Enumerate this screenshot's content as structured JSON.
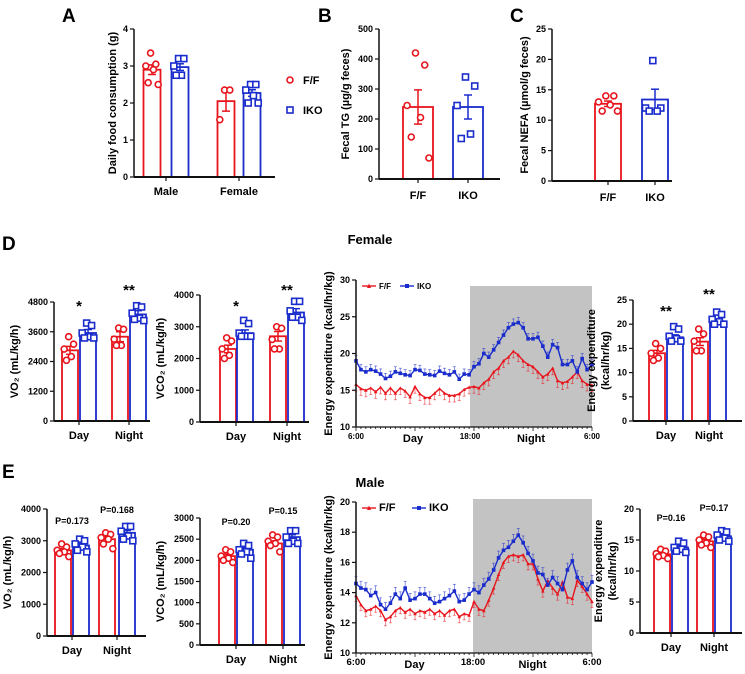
{
  "colors": {
    "ff": "#e8141c",
    "iko": "#1a2ccc",
    "night_shade": "#c3c3c3",
    "axis": "#111111"
  },
  "chart_data": [
    {
      "id": "A",
      "letter": "A",
      "type": "bar",
      "ylabel": "Daily food consumption (g)",
      "ylim": [
        0,
        4
      ],
      "yticks": [
        0,
        1,
        2,
        3,
        4
      ],
      "categories": [
        "Male",
        "Female"
      ],
      "legend": {
        "placement": "right",
        "entries": [
          {
            "name": "F/F",
            "marker": "circle"
          },
          {
            "name": "IKO",
            "marker": "square"
          }
        ]
      },
      "bars": [
        {
          "category": "Male",
          "series": "F/F",
          "mean": 2.9,
          "sem": 0.13,
          "points": [
            3.35,
            3.05,
            3.0,
            2.9,
            2.55,
            2.5
          ]
        },
        {
          "category": "Male",
          "series": "IKO",
          "mean": 2.97,
          "sem": 0.09,
          "points": [
            3.2,
            3.2,
            3.0,
            2.75,
            2.75
          ]
        },
        {
          "category": "Female",
          "series": "F/F",
          "mean": 2.05,
          "sem": 0.27,
          "points": [
            2.35,
            2.35,
            1.55
          ]
        },
        {
          "category": "Female",
          "series": "IKO",
          "mean": 2.27,
          "sem": 0.09,
          "points": [
            2.5,
            2.5,
            2.35,
            2.2,
            2.0,
            2.0
          ]
        }
      ],
      "annotations": []
    },
    {
      "id": "B",
      "letter": "B",
      "type": "bar",
      "ylabel": "Fecal TG (µg/g feces)",
      "ylim": [
        0,
        500
      ],
      "yticks": [
        0,
        100,
        200,
        300,
        400,
        500
      ],
      "categories": [
        "F/F",
        "IKO"
      ],
      "bars": [
        {
          "category": "F/F",
          "series": "F/F",
          "mean": 240,
          "sem": 57,
          "points": [
            420,
            380,
            245,
            205,
            140,
            70
          ]
        },
        {
          "category": "IKO",
          "series": "IKO",
          "mean": 240,
          "sem": 40,
          "points": [
            340,
            310,
            245,
            150,
            135
          ]
        }
      ],
      "annotations": []
    },
    {
      "id": "C",
      "letter": "C",
      "type": "bar",
      "ylabel": "Fecal NEFA (µmol/g feces)",
      "ylim": [
        0,
        25
      ],
      "yticks": [
        0,
        5,
        10,
        15,
        20,
        25
      ],
      "categories": [
        "F/F",
        "IKO"
      ],
      "bars": [
        {
          "category": "F/F",
          "series": "F/F",
          "mean": 12.7,
          "sem": 0.45,
          "points": [
            14,
            14,
            13,
            12.5,
            11.5,
            11.5
          ]
        },
        {
          "category": "IKO",
          "series": "IKO",
          "mean": 13.4,
          "sem": 1.7,
          "points": [
            19.8,
            12,
            12,
            11.5,
            11.5
          ]
        }
      ],
      "annotations": []
    },
    {
      "id": "D1",
      "letter": "D",
      "type": "bar",
      "ylabel": "VO₂ (mL/kg/h)",
      "ylim": [
        0,
        4800
      ],
      "yticks": [
        0,
        1200,
        2400,
        3600,
        4800
      ],
      "categories": [
        "Day",
        "Night"
      ],
      "bars": [
        {
          "category": "Day",
          "series": "F/F",
          "mean": 2850,
          "sem": 160,
          "points": [
            3400,
            3100,
            2900,
            2600,
            2450
          ]
        },
        {
          "category": "Day",
          "series": "IKO",
          "mean": 3550,
          "sem": 140,
          "points": [
            3950,
            3850,
            3550,
            3400,
            3350,
            3350
          ]
        },
        {
          "category": "Night",
          "series": "F/F",
          "mean": 3400,
          "sem": 200,
          "points": [
            3750,
            3700,
            3300,
            3050,
            3050
          ]
        },
        {
          "category": "Night",
          "series": "IKO",
          "mean": 4300,
          "sem": 150,
          "points": [
            4650,
            4600,
            4350,
            4150,
            4100,
            4050
          ]
        }
      ],
      "annotations": [
        "*",
        "**"
      ]
    },
    {
      "id": "D2",
      "type": "bar",
      "ylabel": "VCO₂ (mL/kg/h)",
      "ylim": [
        0,
        4000
      ],
      "yticks": [
        0,
        1000,
        2000,
        3000,
        4000
      ],
      "categories": [
        "Day",
        "Night"
      ],
      "bars": [
        {
          "category": "Day",
          "series": "F/F",
          "mean": 2300,
          "sem": 120,
          "points": [
            2650,
            2550,
            2300,
            2100,
            2000
          ]
        },
        {
          "category": "Day",
          "series": "IKO",
          "mean": 2800,
          "sem": 100,
          "points": [
            3200,
            3100,
            2800,
            2700,
            2700,
            2700
          ]
        },
        {
          "category": "Night",
          "series": "F/F",
          "mean": 2700,
          "sem": 150,
          "points": [
            3000,
            2950,
            2600,
            2300,
            2300
          ]
        },
        {
          "category": "Night",
          "series": "IKO",
          "mean": 3450,
          "sem": 120,
          "points": [
            3800,
            3800,
            3500,
            3300,
            3300,
            3200
          ]
        }
      ],
      "annotations": [
        "*",
        "**"
      ]
    },
    {
      "id": "D3",
      "type": "line",
      "title": "Female",
      "ylabel": "Energy expenditure (kcal/hr/kg)",
      "ylim": [
        10,
        30
      ],
      "yticks": [
        10,
        15,
        20,
        25,
        30
      ],
      "xticklabels": [
        "6:00",
        "Day",
        "18:00",
        "Night",
        "6:00"
      ],
      "night_start_index": 24,
      "series": [
        {
          "name": "F/F",
          "sem": 0.9,
          "values": [
            15.8,
            15.2,
            15,
            15.3,
            14.8,
            15.4,
            14.6,
            15.3,
            14.6,
            15.3,
            14.9,
            14.1,
            15.5,
            14.5,
            14,
            14,
            14.6,
            15.2,
            14.6,
            14.3,
            14.3,
            14.5,
            15.1,
            15.4,
            15.5,
            15.3,
            16,
            16.5,
            17.5,
            18,
            19,
            19.5,
            20.3,
            19.8,
            19,
            18.5,
            18.2,
            17.5,
            16.8,
            17.2,
            18,
            16.3,
            16,
            16.2,
            16.8,
            17.5,
            16.3,
            15.8,
            15.7
          ]
        },
        {
          "name": "IKO",
          "sem": 0.7,
          "values": [
            19,
            17.8,
            17.5,
            17.8,
            17.6,
            17.2,
            16.6,
            16.9,
            17.5,
            17.3,
            17.1,
            17.0,
            17.8,
            17.7,
            17.2,
            17.1,
            17.0,
            17.6,
            17.3,
            17.1,
            17.5,
            16.5,
            17.2,
            17.1,
            18.2,
            18.6,
            20,
            19.5,
            20.5,
            21.5,
            22.5,
            23.5,
            24,
            24.2,
            23.5,
            22,
            22,
            22.2,
            21,
            19.5,
            21.2,
            20.8,
            18.5,
            18.5,
            19,
            17.5,
            19.3,
            17.8,
            18.5
          ]
        }
      ]
    },
    {
      "id": "D4",
      "type": "bar",
      "ylabel": "Energy expenditure (kcal/hr/kg)",
      "ylim": [
        0,
        25
      ],
      "yticks": [
        0,
        5,
        10,
        15,
        20,
        25
      ],
      "categories": [
        "Day",
        "Night"
      ],
      "bars": [
        {
          "category": "Day",
          "series": "F/F",
          "mean": 14,
          "sem": 0.6,
          "points": [
            16,
            15,
            14,
            13,
            12.5
          ]
        },
        {
          "category": "Day",
          "series": "IKO",
          "mean": 17.3,
          "sem": 0.5,
          "points": [
            19.5,
            19,
            17.5,
            17,
            16.5,
            16.5
          ]
        },
        {
          "category": "Night",
          "series": "F/F",
          "mean": 16.4,
          "sem": 0.8,
          "points": [
            19,
            18,
            16.5,
            14.5,
            14.5
          ]
        },
        {
          "category": "Night",
          "series": "IKO",
          "mean": 20.6,
          "sem": 0.5,
          "points": [
            22.5,
            22,
            21,
            20.5,
            20,
            20
          ]
        }
      ],
      "annotations": [
        "**",
        "**"
      ]
    },
    {
      "id": "E1",
      "letter": "E",
      "type": "bar",
      "ylabel": "VO₂ (mL/kg/h)",
      "ylim": [
        0,
        4000
      ],
      "yticks": [
        0,
        1000,
        2000,
        3000,
        4000
      ],
      "categories": [
        "Day",
        "Night"
      ],
      "bars": [
        {
          "category": "Day",
          "series": "F/F",
          "mean": 2700,
          "sem": 50,
          "points": [
            2900,
            2800,
            2700,
            2650,
            2600,
            2500
          ]
        },
        {
          "category": "Day",
          "series": "IKO",
          "mean": 2850,
          "sem": 70,
          "points": [
            3050,
            3000,
            2900,
            2800,
            2700,
            2650
          ]
        },
        {
          "category": "Night",
          "series": "F/F",
          "mean": 3050,
          "sem": 70,
          "points": [
            3250,
            3200,
            3100,
            3050,
            2900,
            2750
          ]
        },
        {
          "category": "Night",
          "series": "IKO",
          "mean": 3250,
          "sem": 70,
          "points": [
            3450,
            3450,
            3300,
            3150,
            3050,
            3000
          ]
        }
      ],
      "annotations": [
        "P=0.173",
        "P=0.168"
      ]
    },
    {
      "id": "E2",
      "type": "bar",
      "ylabel": "VCO₂ (mL/kg/h)",
      "ylim": [
        0,
        3000
      ],
      "yticks": [
        0,
        500,
        1000,
        1500,
        2000,
        2500,
        3000
      ],
      "categories": [
        "Day",
        "Night"
      ],
      "bars": [
        {
          "category": "Day",
          "series": "F/F",
          "mean": 2100,
          "sem": 45,
          "points": [
            2250,
            2200,
            2100,
            2050,
            2000,
            1950
          ]
        },
        {
          "category": "Day",
          "series": "IKO",
          "mean": 2250,
          "sem": 50,
          "points": [
            2400,
            2350,
            2250,
            2200,
            2150,
            2050
          ]
        },
        {
          "category": "Night",
          "series": "F/F",
          "mean": 2400,
          "sem": 60,
          "points": [
            2600,
            2550,
            2450,
            2400,
            2350,
            2200
          ]
        },
        {
          "category": "Night",
          "series": "IKO",
          "mean": 2550,
          "sem": 55,
          "points": [
            2700,
            2700,
            2550,
            2450,
            2400,
            2400
          ]
        }
      ],
      "annotations": [
        "P=0.20",
        "P=0.15"
      ]
    },
    {
      "id": "E3",
      "type": "line",
      "title": "Male",
      "ylabel": "Energy expenditure (kcal/hr/kg)",
      "ylim": [
        10,
        20
      ],
      "yticks": [
        10,
        12,
        14,
        16,
        18,
        20
      ],
      "xticklabels": [
        "6:00",
        "Day",
        "18:00",
        "Night",
        "6:00"
      ],
      "night_start_index": 24,
      "series": [
        {
          "name": "F/F",
          "sem": 0.4,
          "values": [
            13.8,
            13.2,
            12.8,
            12.9,
            13.1,
            12.8,
            12.2,
            12.4,
            12.8,
            13.0,
            12.7,
            12.9,
            12.6,
            12.8,
            12.7,
            12.9,
            12.6,
            12.8,
            12.5,
            12.8,
            12.9,
            12.4,
            12.6,
            12.5,
            13.4,
            12.9,
            12.8,
            13.5,
            14.3,
            15.2,
            16.0,
            16.4,
            16.5,
            16.4,
            16.5,
            15.9,
            15.9,
            14.9,
            14.1,
            14.8,
            14.3,
            13.9,
            14.7,
            13.7,
            13.6,
            14.8,
            14.4,
            13.9,
            13.4
          ]
        },
        {
          "name": "IKO",
          "sem": 0.45,
          "values": [
            14.6,
            14.3,
            14.2,
            13.8,
            14,
            13.2,
            12.9,
            13.3,
            13.9,
            13.6,
            14.3,
            13.5,
            13.6,
            13.9,
            13.9,
            13.6,
            13.3,
            13.4,
            13.6,
            13.8,
            14.1,
            13.4,
            13.5,
            13.9,
            14.2,
            14.0,
            14.5,
            14.9,
            15.5,
            16.3,
            16.8,
            17.0,
            17.4,
            17.8,
            17.3,
            16.6,
            16.1,
            15.3,
            15.2,
            14.5,
            15.0,
            14.6,
            14.2,
            15.5,
            16.1,
            15.0,
            14.6,
            14.2,
            14.7
          ]
        }
      ]
    },
    {
      "id": "E4",
      "type": "bar",
      "ylabel": "Energy expenditure (kcal/hr/kg)",
      "ylim": [
        0,
        20
      ],
      "yticks": [
        0,
        5,
        10,
        15,
        20
      ],
      "categories": [
        "Day",
        "Night"
      ],
      "bars": [
        {
          "category": "Day",
          "series": "F/F",
          "mean": 12.7,
          "sem": 0.2,
          "points": [
            13.5,
            13.2,
            12.8,
            12.5,
            12.3,
            12
          ]
        },
        {
          "category": "Day",
          "series": "IKO",
          "mean": 13.8,
          "sem": 0.3,
          "points": [
            14.8,
            14.5,
            13.8,
            13.5,
            13.2,
            13
          ]
        },
        {
          "category": "Night",
          "series": "F/F",
          "mean": 14.8,
          "sem": 0.3,
          "points": [
            15.8,
            15.5,
            15,
            14.5,
            14.2,
            13.8
          ]
        },
        {
          "category": "Night",
          "series": "IKO",
          "mean": 15.6,
          "sem": 0.3,
          "points": [
            16.5,
            16.3,
            15.8,
            15.3,
            15,
            14.8
          ]
        }
      ],
      "annotations": [
        "P=0.16",
        "P=0.17"
      ]
    }
  ]
}
